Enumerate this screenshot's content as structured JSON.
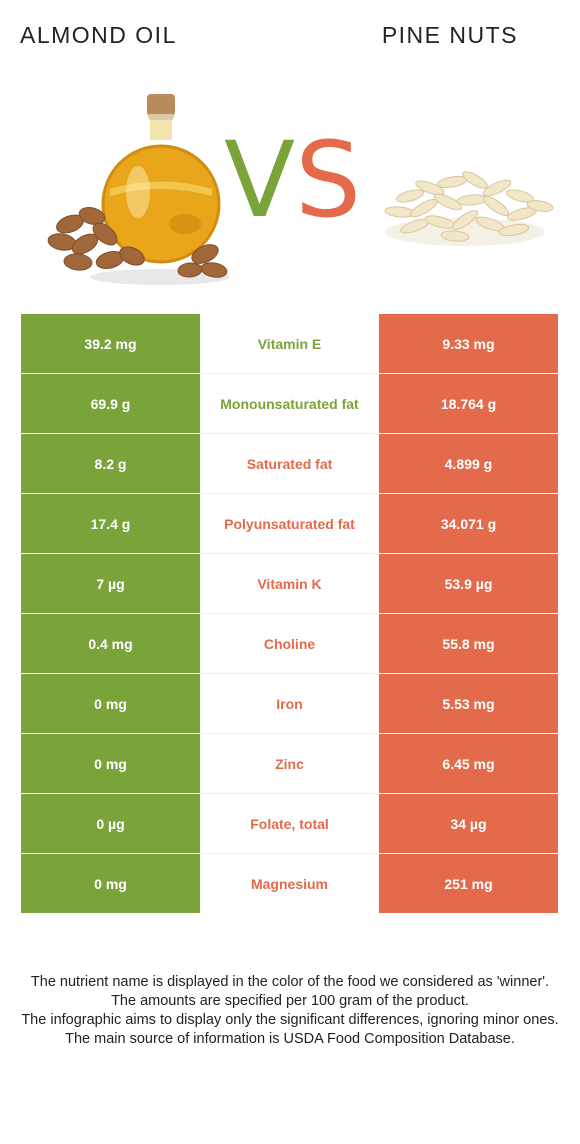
{
  "left_food": "ALMOND OIL",
  "right_food": "PINE NUTS",
  "vs_text": {
    "v": "V",
    "s": "S"
  },
  "colors": {
    "left": "#7aa33a",
    "right": "#e36a4a"
  },
  "rows": [
    {
      "nutrient": "Vitamin E",
      "left": "39.2 mg",
      "right": "9.33 mg",
      "winner": "left"
    },
    {
      "nutrient": "Monounsaturated fat",
      "left": "69.9 g",
      "right": "18.764 g",
      "winner": "left"
    },
    {
      "nutrient": "Saturated fat",
      "left": "8.2 g",
      "right": "4.899 g",
      "winner": "right"
    },
    {
      "nutrient": "Polyunsaturated fat",
      "left": "17.4 g",
      "right": "34.071 g",
      "winner": "right"
    },
    {
      "nutrient": "Vitamin K",
      "left": "7 µg",
      "right": "53.9 µg",
      "winner": "right"
    },
    {
      "nutrient": "Choline",
      "left": "0.4 mg",
      "right": "55.8 mg",
      "winner": "right"
    },
    {
      "nutrient": "Iron",
      "left": "0 mg",
      "right": "5.53 mg",
      "winner": "right"
    },
    {
      "nutrient": "Zinc",
      "left": "0 mg",
      "right": "6.45 mg",
      "winner": "right"
    },
    {
      "nutrient": "Folate, total",
      "left": "0 µg",
      "right": "34 µg",
      "winner": "right"
    },
    {
      "nutrient": "Magnesium",
      "left": "0 mg",
      "right": "251 mg",
      "winner": "right"
    }
  ],
  "footer": [
    "The nutrient name is displayed in the color of the food we considered as 'winner'.",
    "The amounts are specified per 100 gram of the product.",
    "The infographic aims to display only the significant differences, ignoring minor ones.",
    "The main source of information is USDA Food Composition Database."
  ]
}
